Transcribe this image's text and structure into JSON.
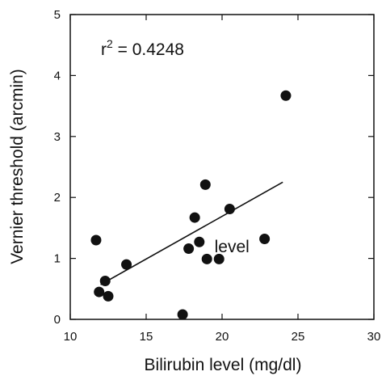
{
  "chart_data": {
    "type": "scatter",
    "title": "",
    "xlabel": "Bilirubin level (mg/dl)",
    "ylabel": "Vernier threshold (arcmin)",
    "xlim": [
      10,
      30
    ],
    "ylim": [
      0,
      5
    ],
    "x_ticks": [
      "10",
      "15",
      "20",
      "25",
      "30"
    ],
    "y_ticks": [
      "0",
      "1",
      "2",
      "3",
      "4",
      "5"
    ],
    "grid": false,
    "legend": "none",
    "marker_color": "#111111",
    "series": [
      {
        "points": [
          {
            "x": 11.7,
            "y": 1.3
          },
          {
            "x": 11.9,
            "y": 0.45
          },
          {
            "x": 12.3,
            "y": 0.63
          },
          {
            "x": 12.5,
            "y": 0.38
          },
          {
            "x": 13.7,
            "y": 0.9
          },
          {
            "x": 17.4,
            "y": 0.08
          },
          {
            "x": 17.8,
            "y": 1.16
          },
          {
            "x": 18.2,
            "y": 1.67
          },
          {
            "x": 18.5,
            "y": 1.27
          },
          {
            "x": 18.9,
            "y": 2.21
          },
          {
            "x": 19.0,
            "y": 0.99
          },
          {
            "x": 19.8,
            "y": 0.99
          },
          {
            "x": 20.5,
            "y": 1.81
          },
          {
            "x": 22.8,
            "y": 1.32
          },
          {
            "x": 24.2,
            "y": 3.67
          }
        ]
      }
    ],
    "fit_line": {
      "x": [
        12.0,
        24.0
      ],
      "y": [
        0.57,
        2.25
      ]
    },
    "annotations": [
      {
        "label_base": "r",
        "label_sup": "2",
        "label_rest": " = 0.4248"
      },
      {
        "text": "level",
        "x": 19.5,
        "y": 1.1
      }
    ]
  }
}
